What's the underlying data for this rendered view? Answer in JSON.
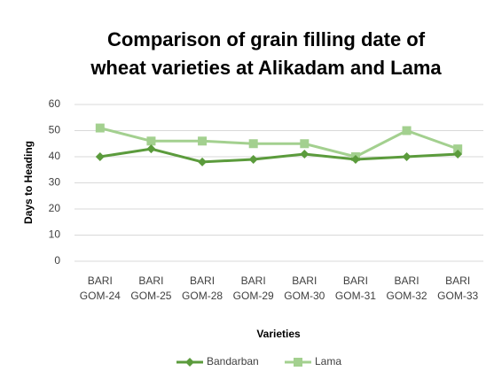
{
  "chart_data": {
    "type": "line",
    "title": [
      "Comparison of grain filling date of",
      "wheat varieties at Alikadam and Lama"
    ],
    "y_label": "Days to Heading",
    "x_label": "Varieties",
    "categories": [
      "BARI GOM-24",
      "BARI GOM-25",
      "BARI GOM-28",
      "BARI GOM-29",
      "BARI GOM-30",
      "BARI GOM-31",
      "BARI GOM-32",
      "BARI GOM-33"
    ],
    "series": [
      {
        "name": "Bandarban",
        "color": "#5b9b3c",
        "marker": "diamond",
        "values": [
          40,
          43,
          38,
          39,
          41,
          39,
          40,
          41
        ]
      },
      {
        "name": "Lama",
        "color": "#a3d08f",
        "marker": "square",
        "values": [
          51,
          46,
          46,
          45,
          45,
          40,
          50,
          43
        ]
      }
    ],
    "ylim": [
      0,
      60
    ],
    "yticks": [
      0,
      10,
      20,
      30,
      40,
      50,
      60
    ],
    "grid": true,
    "legend": "bottom"
  }
}
